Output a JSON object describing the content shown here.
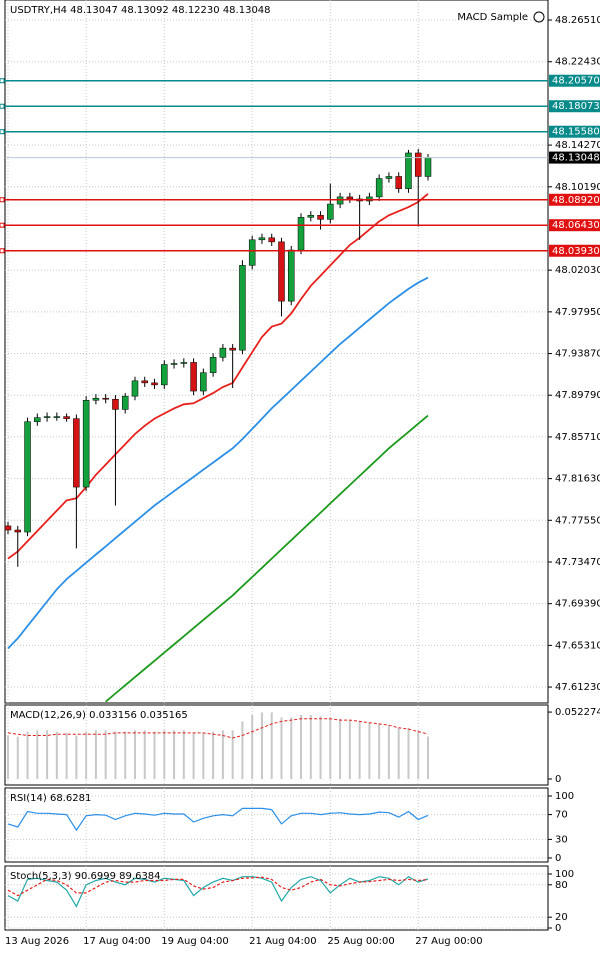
{
  "chart_data": [
    {
      "type": "candlestick",
      "title": "USDTRY,H4  48.13047 48.13092 48.12230 48.13048",
      "expert": "MACD Sample",
      "categories": [
        "13 Aug 2026",
        null,
        null,
        null,
        null,
        null,
        null,
        null,
        "17 Aug 04:00",
        null,
        null,
        null,
        null,
        null,
        null,
        null,
        "19 Aug 04:00",
        null,
        null,
        null,
        null,
        null,
        null,
        null,
        null,
        "21 Aug 04:00",
        null,
        null,
        null,
        null,
        null,
        null,
        null,
        "25 Aug 00:00",
        null,
        null,
        null,
        null,
        null,
        null,
        null,
        null,
        "27 Aug 00:00",
        null
      ],
      "open": [
        47.77,
        47.766,
        47.764,
        47.872,
        47.876,
        47.877,
        47.877,
        47.875,
        47.808,
        47.893,
        47.895,
        47.894,
        47.884,
        47.897,
        47.912,
        47.91,
        47.908,
        47.928,
        47.929,
        47.93,
        47.902,
        47.92,
        47.935,
        47.944,
        47.942,
        48.025,
        48.05,
        48.052,
        48.048,
        47.99,
        48.04,
        48.072,
        48.074,
        48.07,
        48.085,
        48.092,
        48.09,
        48.088,
        48.092,
        48.11,
        48.112,
        48.1,
        48.135,
        48.112
      ],
      "high": [
        47.774,
        47.77,
        47.876,
        47.88,
        47.881,
        47.881,
        47.88,
        47.879,
        47.897,
        47.899,
        47.899,
        47.898,
        47.9,
        47.916,
        47.916,
        47.914,
        47.932,
        47.933,
        47.934,
        47.934,
        47.924,
        47.939,
        47.948,
        47.948,
        48.03,
        48.054,
        48.056,
        48.056,
        48.052,
        48.044,
        48.076,
        48.078,
        48.078,
        48.105,
        48.096,
        48.096,
        48.094,
        48.096,
        48.114,
        48.116,
        48.116,
        48.138,
        48.139,
        48.134
      ],
      "low": [
        47.762,
        47.73,
        47.76,
        47.868,
        47.872,
        47.873,
        47.872,
        47.748,
        47.804,
        47.889,
        47.89,
        47.79,
        47.88,
        47.893,
        47.906,
        47.904,
        47.904,
        47.924,
        47.925,
        47.898,
        47.898,
        47.916,
        47.931,
        47.905,
        47.938,
        48.021,
        48.046,
        48.044,
        47.975,
        47.986,
        48.036,
        48.068,
        48.06,
        48.066,
        48.081,
        48.086,
        48.05,
        48.084,
        48.088,
        48.106,
        48.096,
        48.096,
        48.063,
        48.108
      ],
      "close": [
        47.766,
        47.764,
        47.872,
        47.876,
        47.877,
        47.877,
        47.875,
        47.808,
        47.893,
        47.895,
        47.894,
        47.884,
        47.897,
        47.912,
        47.91,
        47.908,
        47.928,
        47.929,
        47.93,
        47.902,
        47.92,
        47.935,
        47.944,
        47.942,
        48.025,
        48.05,
        48.052,
        48.048,
        47.99,
        48.04,
        48.072,
        48.074,
        48.07,
        48.085,
        48.092,
        48.09,
        48.088,
        48.092,
        48.11,
        48.112,
        48.1,
        48.135,
        48.112,
        48.13048
      ],
      "up_color": "#14a03c",
      "down_color": "#d41414",
      "series": [
        {
          "color": "#e8201c",
          "values": [
            47.738,
            47.745,
            47.755,
            47.765,
            47.775,
            47.785,
            47.795,
            47.797,
            47.808,
            47.82,
            47.83,
            47.84,
            47.85,
            47.86,
            47.868,
            47.875,
            47.88,
            47.885,
            47.889,
            47.89,
            47.895,
            47.9,
            47.906,
            47.91,
            47.925,
            47.94,
            47.955,
            47.965,
            47.968,
            47.978,
            47.992,
            48.005,
            48.015,
            48.025,
            48.035,
            48.045,
            48.052,
            48.06,
            48.068,
            48.074,
            48.078,
            48.082,
            48.087,
            48.095
          ]
        },
        {
          "color": "#2b8fe8",
          "values": [
            47.65,
            47.66,
            47.672,
            47.684,
            47.696,
            47.708,
            47.718,
            47.726,
            47.734,
            47.742,
            47.75,
            47.758,
            47.766,
            47.774,
            47.782,
            47.79,
            47.797,
            47.804,
            47.811,
            47.818,
            47.825,
            47.832,
            47.839,
            47.846,
            47.855,
            47.865,
            47.875,
            47.885,
            47.894,
            47.903,
            47.912,
            47.921,
            47.93,
            47.939,
            47.948,
            47.956,
            47.964,
            47.972,
            47.98,
            47.988,
            47.995,
            48.002,
            48.008,
            48.013
          ]
        },
        {
          "color": "#1c9a1c",
          "values": [
            null,
            null,
            null,
            null,
            null,
            null,
            null,
            null,
            null,
            null,
            47.598,
            47.606,
            47.614,
            47.622,
            47.63,
            47.638,
            47.646,
            47.654,
            47.662,
            47.67,
            47.678,
            47.686,
            47.694,
            47.702,
            47.711,
            47.72,
            47.729,
            47.738,
            47.747,
            47.756,
            47.765,
            47.774,
            47.783,
            47.792,
            47.801,
            47.81,
            47.819,
            47.828,
            47.837,
            47.846,
            47.854,
            47.862,
            47.87,
            47.878
          ]
        }
      ],
      "levels": [
        {
          "value": 48.2057,
          "label": "48.20570",
          "color": "#078a8a"
        },
        {
          "value": 48.18073,
          "label": "48.18073",
          "color": "#078a8a"
        },
        {
          "value": 48.1558,
          "label": "48.15580",
          "color": "#078a8a"
        },
        {
          "value": 48.0892,
          "label": "48.08920",
          "color": "#e01010"
        },
        {
          "value": 48.0643,
          "label": "48.06430",
          "color": "#e01010"
        },
        {
          "value": 48.0393,
          "label": "48.03930",
          "color": "#e01010"
        }
      ],
      "last": {
        "value": 48.13048,
        "label": "48.13048"
      },
      "ylim": [
        47.5967,
        48.2847
      ],
      "yticks": [
        {
          "value": 48.2651,
          "label": "48.26510"
        },
        {
          "value": 48.2243,
          "label": "48.22430"
        },
        {
          "value": 48.1427,
          "label": "48.14270"
        },
        {
          "value": 48.1019,
          "label": "48.10190"
        },
        {
          "value": 48.0203,
          "label": "48.02030"
        },
        {
          "value": 47.9795,
          "label": "47.97950"
        },
        {
          "value": 47.9387,
          "label": "47.93870"
        },
        {
          "value": 47.8979,
          "label": "47.89790"
        },
        {
          "value": 47.8571,
          "label": "47.85710"
        },
        {
          "value": 47.8163,
          "label": "47.81630"
        },
        {
          "value": 47.7755,
          "label": "47.77550"
        },
        {
          "value": 47.7347,
          "label": "47.73470"
        },
        {
          "value": 47.6939,
          "label": "47.69390"
        },
        {
          "value": 47.6531,
          "label": "47.65310"
        },
        {
          "value": 47.6123,
          "label": "47.61230"
        }
      ],
      "grid": true
    },
    {
      "type": "macd",
      "title": "MACD(12,26,9) 0.033156 0.035165",
      "histogram": {
        "color": "#c8c8c8",
        "values": [
          0.034,
          0.033,
          0.037,
          0.038,
          0.038,
          0.037,
          0.036,
          0.034,
          0.037,
          0.038,
          0.038,
          0.037,
          0.037,
          0.038,
          0.038,
          0.037,
          0.038,
          0.038,
          0.038,
          0.036,
          0.036,
          0.037,
          0.038,
          0.038,
          0.045,
          0.05,
          0.052,
          0.052,
          0.048,
          0.048,
          0.05,
          0.05,
          0.049,
          0.048,
          0.047,
          0.046,
          0.045,
          0.044,
          0.043,
          0.042,
          0.04,
          0.04,
          0.038,
          0.033156
        ]
      },
      "signal": {
        "color": "#e8201c",
        "values": [
          0.036,
          0.035,
          0.034,
          0.034,
          0.034,
          0.035,
          0.035,
          0.035,
          0.035,
          0.035,
          0.035,
          0.036,
          0.036,
          0.036,
          0.036,
          0.036,
          0.036,
          0.036,
          0.036,
          0.036,
          0.036,
          0.035,
          0.034,
          0.032,
          0.034,
          0.037,
          0.04,
          0.043,
          0.045,
          0.046,
          0.047,
          0.047,
          0.047,
          0.047,
          0.046,
          0.046,
          0.045,
          0.044,
          0.043,
          0.042,
          0.04,
          0.039,
          0.037,
          0.035165
        ]
      },
      "ylim": [
        -0.0047,
        0.0578
      ],
      "yticks": [
        0.052274,
        0
      ],
      "grid": false
    },
    {
      "type": "line",
      "title": "RSI(14) 68.6281",
      "series": [
        {
          "color": "#2b8fe8",
          "values": [
            55,
            50,
            75,
            72,
            72,
            71,
            70,
            45,
            68,
            70,
            69,
            62,
            68,
            72,
            71,
            69,
            72,
            71,
            71,
            58,
            64,
            68,
            70,
            68,
            80,
            80,
            80,
            78,
            55,
            68,
            72,
            72,
            70,
            72,
            73,
            71,
            70,
            71,
            74,
            73,
            66,
            75,
            62,
            68.6281
          ]
        }
      ],
      "ylim": [
        -6.5,
        112.9
      ],
      "yticks": [
        100,
        70,
        30,
        0
      ],
      "grid": true
    },
    {
      "type": "line",
      "title": "Stoch(5,3,3) 90.6999 89.6384",
      "series": [
        {
          "color": "#20a8a8",
          "values": [
            60,
            50,
            90,
            92,
            88,
            85,
            70,
            40,
            80,
            88,
            92,
            85,
            80,
            92,
            90,
            85,
            92,
            90,
            88,
            60,
            75,
            85,
            92,
            88,
            95,
            95,
            92,
            85,
            50,
            75,
            90,
            95,
            88,
            65,
            80,
            92,
            85,
            88,
            95,
            92,
            80,
            95,
            85,
            90.6999
          ]
        },
        {
          "color": "#e8201c",
          "dashed": true,
          "values": [
            70,
            60,
            70,
            80,
            90,
            88,
            80,
            65,
            65,
            75,
            85,
            88,
            85,
            85,
            88,
            88,
            88,
            90,
            90,
            78,
            72,
            75,
            85,
            88,
            92,
            93,
            94,
            90,
            75,
            70,
            75,
            85,
            90,
            80,
            78,
            82,
            85,
            86,
            88,
            90,
            88,
            90,
            88,
            89.6384
          ]
        }
      ],
      "ylim": [
        -3.7,
        114.8
      ],
      "yticks": [
        100,
        80,
        20,
        0
      ],
      "grid": true
    }
  ]
}
